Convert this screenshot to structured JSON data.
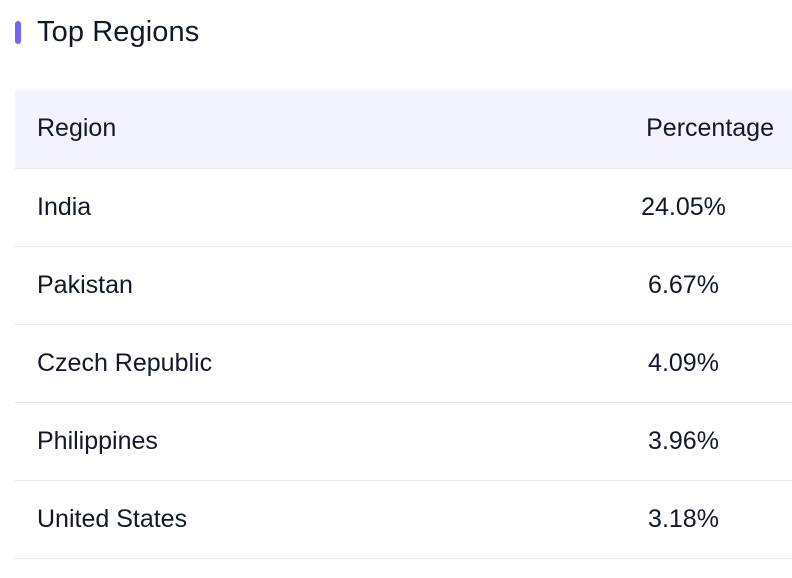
{
  "section": {
    "title": "Top Regions",
    "accent_color": "#7367f0"
  },
  "table": {
    "headers": {
      "region": "Region",
      "percentage": "Percentage"
    },
    "rows": [
      {
        "region": "India",
        "percentage": "24.05%"
      },
      {
        "region": "Pakistan",
        "percentage": "6.67%"
      },
      {
        "region": "Czech Republic",
        "percentage": "4.09%"
      },
      {
        "region": "Philippines",
        "percentage": "3.96%"
      },
      {
        "region": "United States",
        "percentage": "3.18%"
      }
    ]
  }
}
